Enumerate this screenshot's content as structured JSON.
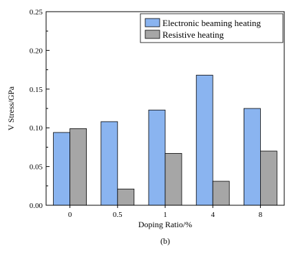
{
  "chart_data": {
    "type": "bar",
    "title": "",
    "caption": "(b)",
    "xlabel": "Doping Ratio/%",
    "ylabel": "V Stress/GPa",
    "categories": [
      "0",
      "0.5",
      "1",
      "4",
      "8"
    ],
    "ylim": [
      0,
      0.25
    ],
    "yticks": [
      "0.00",
      "0.05",
      "0.10",
      "0.15",
      "0.20",
      "0.25"
    ],
    "grid": false,
    "legend_position": "top-right",
    "series": [
      {
        "name": "Electronic beaming heating",
        "color": "#8ab4f0",
        "values": [
          0.094,
          0.108,
          0.123,
          0.168,
          0.125
        ]
      },
      {
        "name": "Resistive heating",
        "color": "#a6a6a6",
        "values": [
          0.099,
          0.021,
          0.067,
          0.031,
          0.07
        ]
      }
    ]
  }
}
